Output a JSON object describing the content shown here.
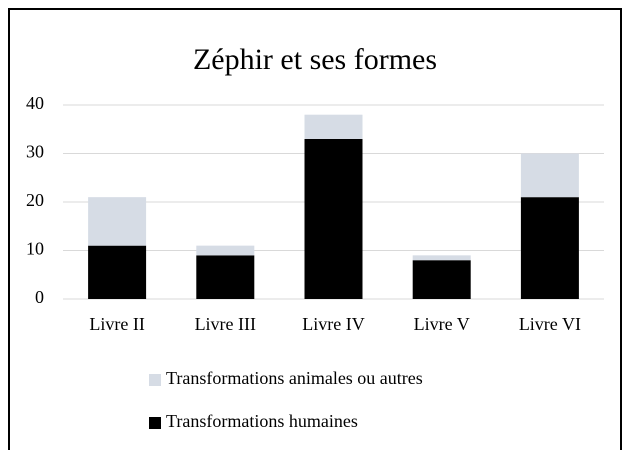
{
  "chart_data": {
    "type": "stacked_bar",
    "title": "Zéphir et ses formes",
    "categories": [
      "Livre II",
      "Livre III",
      "Livre IV",
      "Livre V",
      "Livre VI"
    ],
    "series": [
      {
        "name": "Transformations humaines",
        "color": "#000000",
        "values": [
          11,
          9,
          33,
          8,
          21
        ]
      },
      {
        "name": "Transformations animales ou autres",
        "color": "#d6dce5",
        "values": [
          10,
          2,
          5,
          1,
          9
        ]
      }
    ],
    "ylim": [
      0,
      40
    ],
    "yticks": [
      0,
      10,
      20,
      30,
      40
    ],
    "grid": true
  }
}
